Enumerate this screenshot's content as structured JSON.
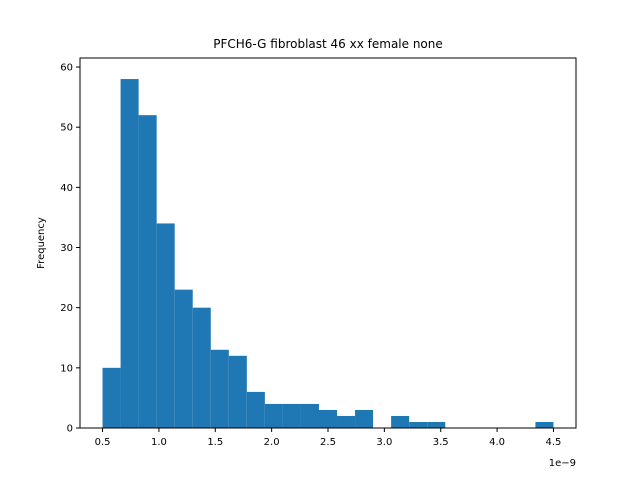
{
  "chart_data": {
    "type": "bar",
    "subtype": "histogram",
    "title": "PFCH6-G fibroblast 46 xx female none",
    "xlabel": "",
    "ylabel": "Frequency",
    "x_offset_label": "1e−9",
    "x_scale": 1e-09,
    "xlim": [
      0.3,
      4.7
    ],
    "ylim": [
      0,
      61.5
    ],
    "x_ticks": [
      0.5,
      1.0,
      1.5,
      2.0,
      2.5,
      3.0,
      3.5,
      4.0,
      4.5
    ],
    "x_tick_labels": [
      "0.5",
      "1.0",
      "1.5",
      "2.0",
      "2.5",
      "3.0",
      "3.5",
      "4.0",
      "4.5"
    ],
    "y_ticks": [
      0,
      10,
      20,
      30,
      40,
      50,
      60
    ],
    "y_tick_labels": [
      "0",
      "10",
      "20",
      "30",
      "40",
      "50",
      "60"
    ],
    "bin_edges": [
      0.5,
      0.66,
      0.82,
      0.98,
      1.14,
      1.3,
      1.46,
      1.62,
      1.78,
      1.94,
      2.1,
      2.26,
      2.42,
      2.58,
      2.74,
      2.9,
      3.06,
      3.22,
      3.38,
      3.54,
      3.7,
      3.86,
      4.02,
      4.18,
      4.34,
      4.5
    ],
    "values": [
      10,
      58,
      52,
      34,
      23,
      20,
      13,
      12,
      6,
      4,
      4,
      4,
      3,
      2,
      3,
      0,
      2,
      1,
      1,
      0,
      0,
      0,
      0,
      0,
      1
    ],
    "bar_color": "#1f77b4",
    "grid": false,
    "legend": "none"
  }
}
